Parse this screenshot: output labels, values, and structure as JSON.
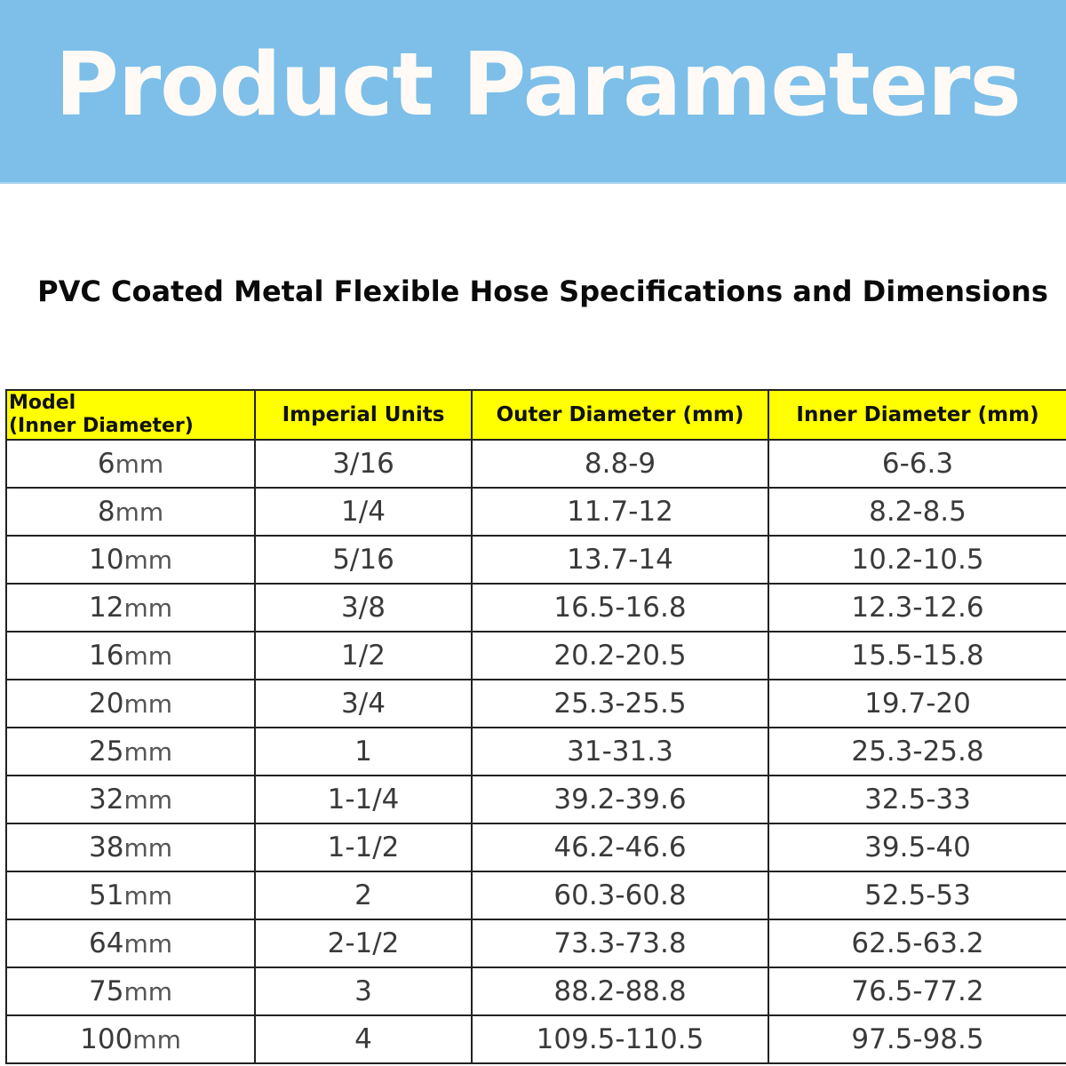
{
  "header": {
    "title": "Product Parameters",
    "subtitle": "PVC Coated Metal Flexible Hose Specifications and Dimensions"
  },
  "table": {
    "headers": {
      "model_line1": "Model",
      "model_line2": "(Inner Diameter)",
      "imperial": "Imperial Units",
      "outer": "Outer Diameter (mm)",
      "inner": "Inner Diameter (mm)"
    },
    "rows": [
      {
        "model_value": "6",
        "model_unit": "mm",
        "imperial": "3/16",
        "outer": "8.8-9",
        "inner": "6-6.3"
      },
      {
        "model_value": "8",
        "model_unit": "mm",
        "imperial": "1/4",
        "outer": "11.7-12",
        "inner": "8.2-8.5"
      },
      {
        "model_value": "10",
        "model_unit": "mm",
        "imperial": "5/16",
        "outer": "13.7-14",
        "inner": "10.2-10.5"
      },
      {
        "model_value": "12",
        "model_unit": "mm",
        "imperial": "3/8",
        "outer": "16.5-16.8",
        "inner": "12.3-12.6"
      },
      {
        "model_value": "16",
        "model_unit": "mm",
        "imperial": "1/2",
        "outer": "20.2-20.5",
        "inner": "15.5-15.8"
      },
      {
        "model_value": "20",
        "model_unit": "mm",
        "imperial": "3/4",
        "outer": "25.3-25.5",
        "inner": "19.7-20"
      },
      {
        "model_value": "25",
        "model_unit": "mm",
        "imperial": "1",
        "outer": "31-31.3",
        "inner": "25.3-25.8"
      },
      {
        "model_value": "32",
        "model_unit": "mm",
        "imperial": "1-1/4",
        "outer": "39.2-39.6",
        "inner": "32.5-33"
      },
      {
        "model_value": "38",
        "model_unit": "mm",
        "imperial": "1-1/2",
        "outer": "46.2-46.6",
        "inner": "39.5-40"
      },
      {
        "model_value": "51",
        "model_unit": "mm",
        "imperial": "2",
        "outer": "60.3-60.8",
        "inner": "52.5-53"
      },
      {
        "model_value": "64",
        "model_unit": "mm",
        "imperial": "2-1/2",
        "outer": "73.3-73.8",
        "inner": "62.5-63.2"
      },
      {
        "model_value": "75",
        "model_unit": "mm",
        "imperial": "3",
        "outer": "88.2-88.8",
        "inner": "76.5-77.2"
      },
      {
        "model_value": "100",
        "model_unit": "mm",
        "imperial": "4",
        "outer": "109.5-110.5",
        "inner": "97.5-98.5"
      }
    ]
  },
  "colors": {
    "banner": "#7dbfe8",
    "banner_text": "#fffaf5",
    "header_fill": "#ffff00",
    "grid_line": "#222222"
  }
}
